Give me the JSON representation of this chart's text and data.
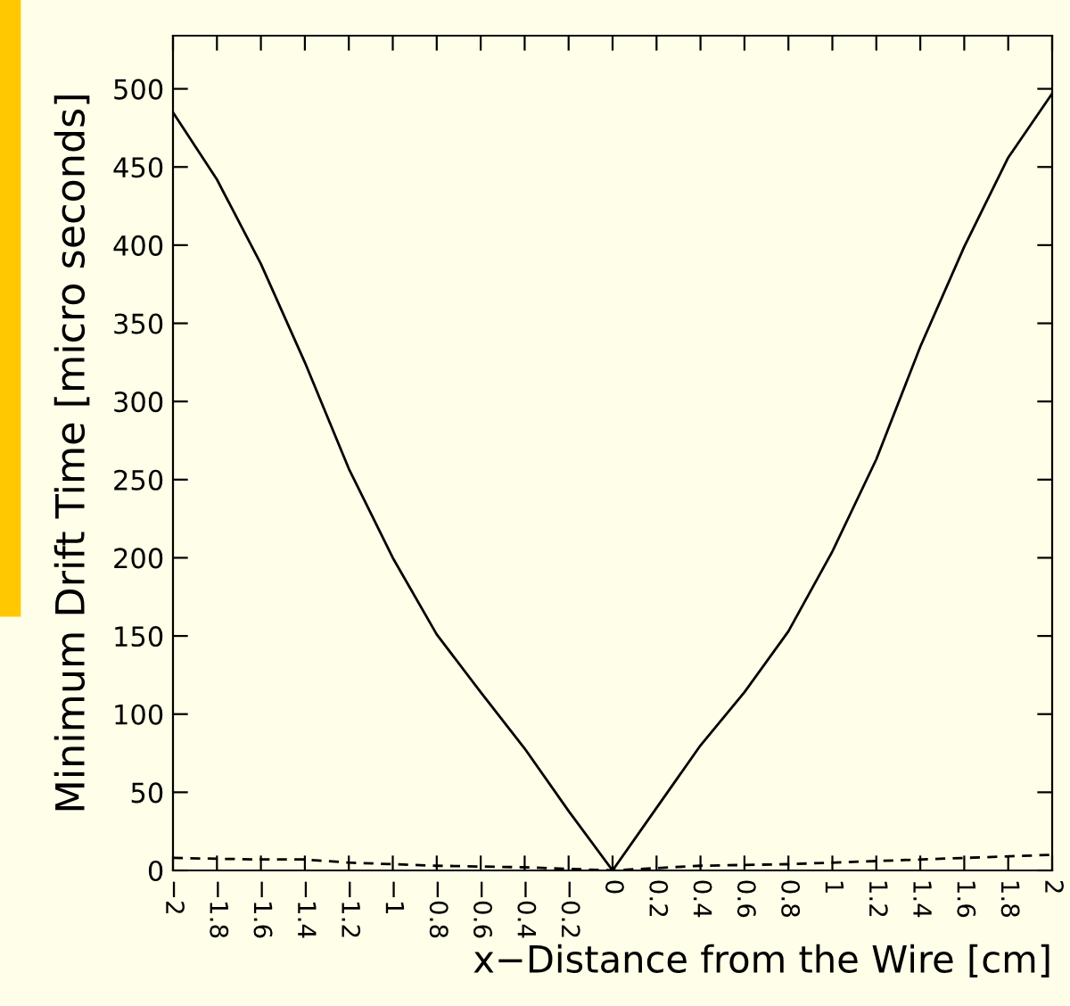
{
  "chart_data": {
    "type": "line",
    "xlabel": "x−Distance from the Wire [cm]",
    "ylabel": "Minimum Drift Time [micro seconds]",
    "xlim": [
      -2,
      2
    ],
    "ylim": [
      0,
      534
    ],
    "xticks": [
      -2,
      -1.8,
      -1.6,
      -1.4,
      -1.2,
      -1,
      -0.8,
      -0.6,
      -0.4,
      -0.2,
      0,
      0.2,
      0.4,
      0.6,
      0.8,
      1,
      1.2,
      1.4,
      1.6,
      1.8,
      2
    ],
    "yticks": [
      0,
      50,
      100,
      150,
      200,
      250,
      300,
      350,
      400,
      450,
      500
    ],
    "grid": false,
    "legend": false,
    "marker": "none",
    "series": [
      {
        "color": "#000000",
        "line_style": "solid",
        "x": [
          -2,
          -1.8,
          -1.6,
          -1.4,
          -1.2,
          -1,
          -0.8,
          -0.6,
          -0.4,
          -0.2,
          0,
          0.2,
          0.4,
          0.6,
          0.8,
          1,
          1.2,
          1.4,
          1.6,
          1.8,
          2
        ],
        "values": [
          485,
          442,
          388,
          325,
          257,
          200,
          151,
          114,
          78,
          38,
          0,
          40,
          80,
          114,
          153,
          204,
          263,
          335,
          399,
          456,
          497
        ]
      },
      {
        "color": "#000000",
        "line_style": "dashed",
        "x": [
          -2,
          -1.6,
          -1.4,
          -1.2,
          -0.8,
          -0.4,
          0,
          0.4,
          0.8,
          1.2,
          1.6,
          2
        ],
        "values": [
          8,
          7,
          7,
          5,
          3,
          2,
          0,
          3,
          4,
          6,
          8,
          10
        ]
      }
    ]
  }
}
